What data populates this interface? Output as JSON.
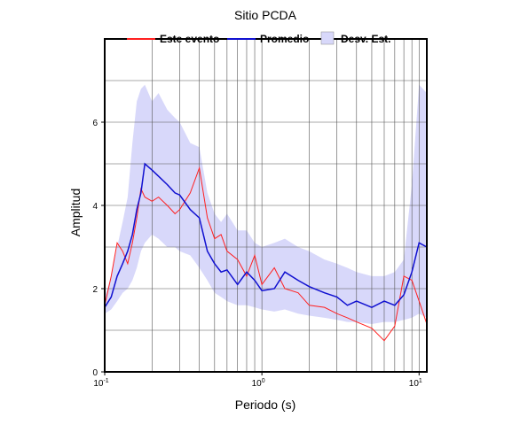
{
  "chart_data": {
    "type": "line",
    "title": "Sitio PCDA",
    "xlabel": "Periodo (s)",
    "ylabel": "Amplitud",
    "xlog": true,
    "xlim": [
      0.1,
      11.2
    ],
    "ylim": [
      0,
      8
    ],
    "xticks": [
      {
        "value": 0.1,
        "label": "10",
        "exponent": "-1"
      },
      {
        "value": 1,
        "label": "10",
        "exponent": "0"
      },
      {
        "value": 10,
        "label": "10",
        "exponent": "1"
      }
    ],
    "xminor": [
      0.2,
      0.3,
      0.4,
      0.5,
      0.6,
      0.7,
      0.8,
      0.9,
      2,
      3,
      4,
      5,
      6,
      7,
      8,
      9
    ],
    "yticks": [
      0,
      2,
      4,
      6
    ],
    "yminor": [
      1,
      3,
      5,
      7
    ],
    "grid": true,
    "x": [
      0.1,
      0.11,
      0.12,
      0.13,
      0.14,
      0.15,
      0.16,
      0.17,
      0.18,
      0.2,
      0.22,
      0.25,
      0.28,
      0.3,
      0.35,
      0.4,
      0.45,
      0.5,
      0.55,
      0.6,
      0.7,
      0.8,
      0.9,
      1.0,
      1.2,
      1.4,
      1.7,
      2.0,
      2.5,
      3.0,
      3.5,
      4.0,
      5.0,
      6.0,
      7.0,
      8.0,
      9.0,
      10,
      11.2
    ],
    "series": [
      {
        "name": "Este evento",
        "color": "#ff2020",
        "values": [
          1.6,
          2.3,
          3.1,
          2.9,
          2.6,
          3.1,
          3.7,
          4.4,
          4.2,
          4.1,
          4.2,
          4.0,
          3.8,
          3.9,
          4.3,
          4.9,
          3.7,
          3.2,
          3.3,
          2.9,
          2.7,
          2.3,
          2.8,
          2.1,
          2.5,
          2.0,
          1.9,
          1.6,
          1.55,
          1.4,
          1.3,
          1.2,
          1.05,
          0.75,
          1.1,
          2.3,
          2.2,
          1.7,
          1.15
        ]
      },
      {
        "name": "Promedio",
        "color": "#1010d0",
        "values": [
          1.55,
          1.8,
          2.3,
          2.6,
          2.9,
          3.3,
          3.9,
          4.3,
          5.0,
          4.85,
          4.7,
          4.5,
          4.3,
          4.25,
          3.9,
          3.7,
          2.9,
          2.6,
          2.4,
          2.45,
          2.1,
          2.4,
          2.2,
          1.95,
          2.0,
          2.4,
          2.2,
          2.05,
          1.9,
          1.8,
          1.6,
          1.7,
          1.55,
          1.7,
          1.6,
          1.85,
          2.4,
          3.1,
          3.0
        ]
      }
    ],
    "band": {
      "name": "Desv. Est.",
      "color": "#d8d8fa",
      "upper": [
        1.8,
        2.3,
        3.0,
        3.6,
        4.2,
        5.5,
        6.5,
        6.8,
        6.9,
        6.5,
        6.7,
        6.3,
        6.1,
        6.0,
        5.5,
        5.4,
        4.3,
        3.8,
        3.6,
        3.8,
        3.4,
        3.4,
        3.1,
        3.0,
        3.1,
        3.2,
        3.0,
        2.9,
        2.7,
        2.6,
        2.5,
        2.4,
        2.3,
        2.3,
        2.4,
        2.7,
        4.5,
        6.9,
        6.7
      ],
      "lower": [
        1.4,
        1.5,
        1.7,
        1.9,
        2.0,
        2.2,
        2.5,
        2.9,
        3.1,
        3.3,
        3.2,
        3.0,
        3.0,
        2.9,
        2.8,
        2.5,
        2.2,
        1.9,
        1.8,
        1.7,
        1.6,
        1.6,
        1.55,
        1.5,
        1.45,
        1.5,
        1.4,
        1.35,
        1.3,
        1.25,
        1.2,
        1.2,
        1.15,
        1.2,
        1.2,
        1.25,
        1.3,
        1.4,
        1.3
      ]
    }
  }
}
